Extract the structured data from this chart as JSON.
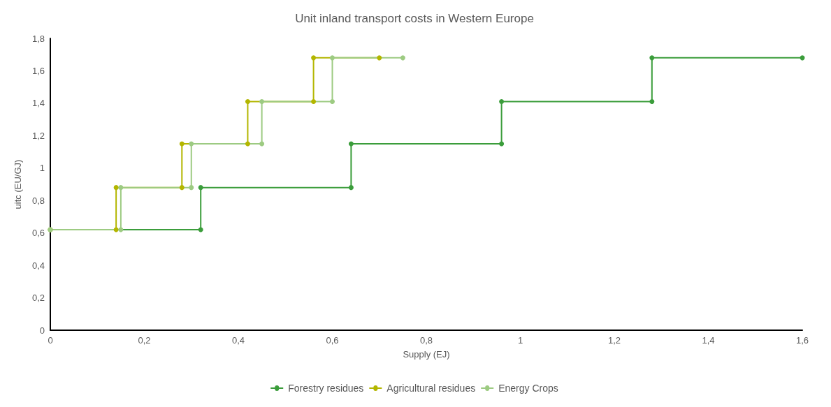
{
  "chart_data": {
    "type": "line",
    "title": "Unit inland transport costs in Western Europe",
    "xlabel": "Supply (EJ)",
    "ylabel": "uitc (EU/GJ)",
    "xlim": [
      0,
      1.6
    ],
    "xticks": [
      0,
      {
        "value": 0.2,
        "label": "0,2"
      },
      {
        "value": 0.4,
        "label": "0,4"
      },
      {
        "value": 0.6,
        "label": "0,6"
      },
      {
        "value": 0.8,
        "label": "0,8"
      },
      1,
      {
        "value": 1.2,
        "label": "1,2"
      },
      {
        "value": 1.4,
        "label": "1,4"
      },
      {
        "value": 1.6,
        "label": "1,6"
      }
    ],
    "ylim": [
      0,
      1.8
    ],
    "yticks": [
      0,
      {
        "value": 0.2,
        "label": "0,2"
      },
      {
        "value": 0.4,
        "label": "0,4"
      },
      {
        "value": 0.6,
        "label": "0,6"
      },
      {
        "value": 0.8,
        "label": "0,8"
      },
      1,
      {
        "value": 1.2,
        "label": "1,2"
      },
      {
        "value": 1.4,
        "label": "1,4"
      },
      {
        "value": 1.6,
        "label": "1,6"
      },
      {
        "value": 1.8,
        "label": "1,8"
      }
    ],
    "grid": false,
    "legend": "bottom",
    "marker": "circle",
    "line_style": "solid",
    "series": [
      {
        "name": "Forestry residues",
        "color": "#3b9d3b",
        "x": [
          0,
          0.32,
          0.32,
          0.64,
          0.64,
          0.96,
          0.96,
          1.28,
          1.28,
          1.6
        ],
        "values": [
          0.62,
          0.62,
          0.88,
          0.88,
          1.15,
          1.15,
          1.41,
          1.41,
          1.68,
          1.68
        ]
      },
      {
        "name": "Agricultural residues",
        "color": "#b3b600",
        "x": [
          0,
          0.14,
          0.14,
          0.28,
          0.28,
          0.42,
          0.42,
          0.56,
          0.56,
          0.7
        ],
        "values": [
          0.62,
          0.62,
          0.88,
          0.88,
          1.15,
          1.15,
          1.41,
          1.41,
          1.68,
          1.68
        ]
      },
      {
        "name": "Energy Crops",
        "color": "#9dcb82",
        "x": [
          0,
          0.15,
          0.15,
          0.3,
          0.3,
          0.45,
          0.45,
          0.6,
          0.6,
          0.75
        ],
        "values": [
          0.62,
          0.62,
          0.88,
          0.88,
          1.15,
          1.15,
          1.41,
          1.41,
          1.68,
          1.68
        ]
      }
    ]
  }
}
